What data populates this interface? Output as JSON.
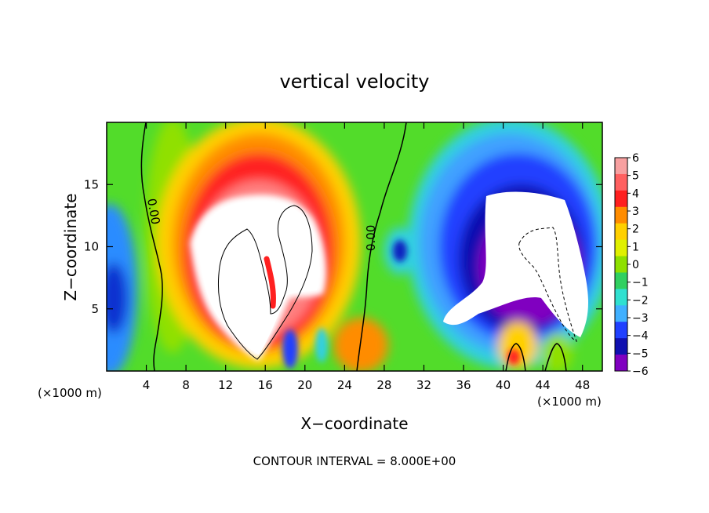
{
  "chart_data": {
    "type": "heatmap",
    "title": "vertical velocity",
    "xlabel": "X−coordinate",
    "ylabel": "Z−coordinate",
    "x_unit_left": "(×1000 m)",
    "x_unit_right": "(×1000 m)",
    "xlim": [
      0,
      50
    ],
    "ylim": [
      0,
      20
    ],
    "xticks": [
      4,
      8,
      12,
      16,
      20,
      24,
      28,
      32,
      36,
      40,
      44,
      48
    ],
    "xtick_labels": [
      "4",
      "8",
      "12",
      "16",
      "20",
      "24",
      "28",
      "32",
      "36",
      "40",
      "44",
      "48"
    ],
    "yticks": [
      5,
      10,
      15
    ],
    "ytick_labels": [
      "5",
      "10",
      "15"
    ],
    "colorbar": {
      "levels": [
        6,
        5,
        4,
        3,
        2,
        1,
        0,
        -1,
        -2,
        -3,
        -4,
        -5,
        -6
      ],
      "labels": [
        "6",
        "5",
        "4",
        "3",
        "2",
        "1",
        "0",
        "−1",
        "−2",
        "−3",
        "−4",
        "−5",
        "−6"
      ],
      "colors": [
        "#f7a0a0",
        "#ff6060",
        "#ff2020",
        "#ff8c00",
        "#ffd000",
        "#e0f000",
        "#8ee000",
        "#30d060",
        "#30e0d0",
        "#40b0ff",
        "#2040ff",
        "#1010b0",
        "#8000c0"
      ]
    },
    "contour_labels": [
      "0.00",
      "0.00"
    ],
    "contour_interval_text": "CONTOUR INTERVAL = 8.000E+00",
    "grid": false,
    "legend": "right"
  }
}
